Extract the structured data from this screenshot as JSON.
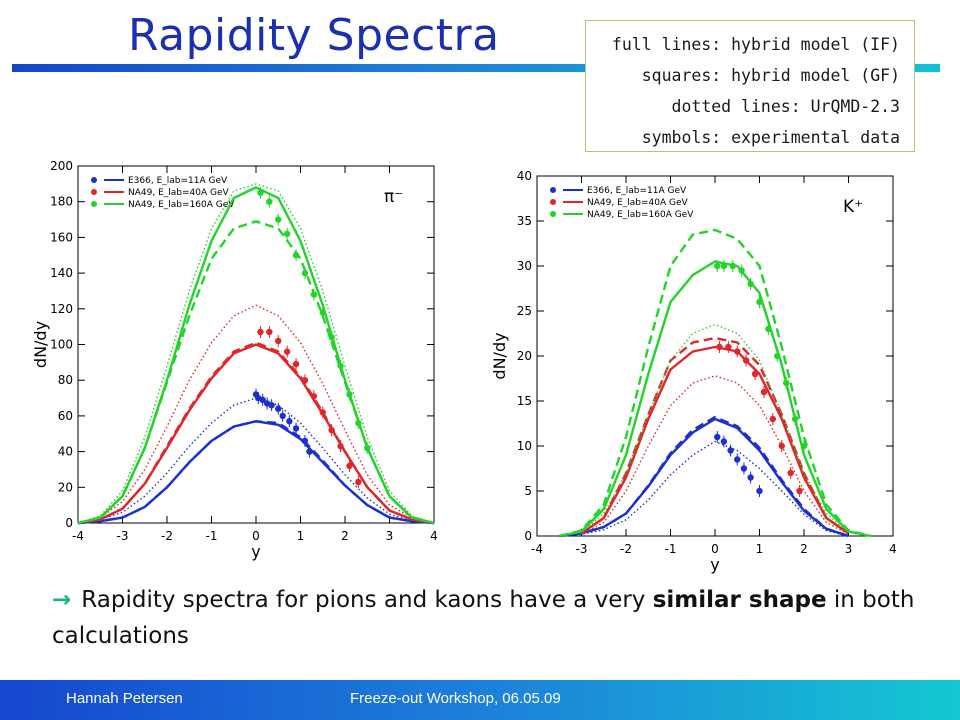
{
  "slide": {
    "title": "Rapidity Spectra",
    "legend_lines": [
      "full lines: hybrid model (IF)",
      "squares: hybrid model (GF)",
      "dotted lines: UrQMD-2.3",
      "symbols: experimental data"
    ],
    "caption_arrow": "→",
    "caption_part1": "Rapidity spectra for pions and kaons have a very ",
    "caption_bold1": "similar shape",
    "caption_part2": " in both calculations",
    "footer_author": "Hannah Petersen",
    "footer_event": "Freeze-out Workshop, 06.05.09"
  },
  "colors": {
    "E366": "#1c2fd1",
    "NA49_40": "#e0262a",
    "NA49_160": "#22d32a",
    "title": "#1b2fb0"
  },
  "chart_data": [
    {
      "type": "line",
      "particle_label": "π⁻",
      "xlabel": "y",
      "ylabel": "dN/dy",
      "xlim": [
        -4,
        4
      ],
      "ylim": [
        0,
        200
      ],
      "xticks": [
        "-4",
        "-3",
        "-2",
        "-1",
        "0",
        "1",
        "2",
        "3",
        "4"
      ],
      "yticks": [
        "0",
        "20",
        "40",
        "60",
        "80",
        "100",
        "120",
        "140",
        "160",
        "180",
        "200"
      ],
      "legend": [
        {
          "label": "E366, E_lab=11A GeV",
          "color_key": "E366"
        },
        {
          "label": "NA49, E_lab=40A GeV",
          "color_key": "NA49_40"
        },
        {
          "label": "NA49, E_lab=160A GeV",
          "color_key": "NA49_160"
        }
      ],
      "series": [
        {
          "color_key": "E366",
          "style": "solid",
          "x": [
            -4,
            -3.5,
            -3,
            -2.5,
            -2,
            -1.5,
            -1,
            -0.5,
            0,
            0.5,
            1,
            1.5,
            2,
            2.5,
            3,
            3.5,
            4
          ],
          "y": [
            0,
            1,
            3,
            9,
            20,
            34,
            46,
            54,
            57,
            55,
            47,
            34,
            21,
            10,
            3,
            1,
            0
          ]
        },
        {
          "color_key": "E366",
          "style": "dashed",
          "x": [
            -4,
            -3.5,
            -3,
            -2.5,
            -2,
            -1.5,
            -1,
            -0.5,
            0,
            0.5,
            1,
            1.5,
            2,
            2.5,
            3,
            3.5,
            4
          ],
          "y": [
            0,
            1,
            3,
            9,
            20,
            34,
            46,
            54,
            57,
            56,
            48,
            35,
            21,
            10,
            3,
            1,
            0
          ]
        },
        {
          "color_key": "E366",
          "style": "dotted",
          "x": [
            -4,
            -3.5,
            -3,
            -2.5,
            -2,
            -1.5,
            -1,
            -0.5,
            0,
            0.5,
            1,
            1.5,
            2,
            2.5,
            3,
            3.5,
            4
          ],
          "y": [
            0,
            2,
            6,
            15,
            28,
            43,
            56,
            66,
            70,
            66,
            56,
            42,
            27,
            14,
            5,
            1,
            0
          ]
        },
        {
          "color_key": "E366",
          "style": "points",
          "x": [
            0,
            0.05,
            0.15,
            0.25,
            0.35,
            0.5,
            0.6,
            0.75,
            0.9,
            1.1,
            1.2
          ],
          "y": [
            72,
            70,
            69,
            67,
            66,
            64,
            60,
            57,
            53,
            46,
            40
          ]
        },
        {
          "color_key": "NA49_40",
          "style": "solid",
          "x": [
            -4,
            -3.5,
            -3,
            -2.5,
            -2,
            -1.5,
            -1,
            -0.5,
            0,
            0.5,
            1,
            1.5,
            2,
            2.5,
            3,
            3.5,
            4
          ],
          "y": [
            0,
            2,
            8,
            22,
            42,
            63,
            81,
            95,
            100,
            95,
            81,
            61,
            40,
            20,
            7,
            2,
            0
          ]
        },
        {
          "color_key": "NA49_40",
          "style": "dashed",
          "x": [
            -4,
            -3.5,
            -3,
            -2.5,
            -2,
            -1.5,
            -1,
            -0.5,
            0,
            0.5,
            1,
            1.5,
            2,
            2.5,
            3,
            3.5,
            4
          ],
          "y": [
            0,
            2,
            8,
            22,
            43,
            64,
            82,
            96,
            101,
            96,
            82,
            62,
            40,
            20,
            7,
            2,
            0
          ]
        },
        {
          "color_key": "NA49_40",
          "style": "dotted",
          "x": [
            -4,
            -3.5,
            -3,
            -2.5,
            -2,
            -1.5,
            -1,
            -0.5,
            0,
            0.5,
            1,
            1.5,
            2,
            2.5,
            3,
            3.5,
            4
          ],
          "y": [
            0,
            3,
            12,
            30,
            54,
            80,
            101,
            116,
            122,
            116,
            101,
            78,
            52,
            27,
            10,
            3,
            0
          ]
        },
        {
          "color_key": "NA49_40",
          "style": "points",
          "x": [
            0.1,
            0.3,
            0.5,
            0.7,
            0.9,
            1.1,
            1.3,
            1.5,
            1.7,
            1.9,
            2.1,
            2.3
          ],
          "y": [
            107,
            107,
            102,
            96,
            89,
            80,
            71,
            62,
            52,
            43,
            32,
            23
          ]
        },
        {
          "color_key": "NA49_160",
          "style": "solid",
          "x": [
            -4,
            -3.5,
            -3,
            -2.5,
            -2,
            -1.5,
            -1,
            -0.5,
            0,
            0.5,
            1,
            1.5,
            2,
            2.5,
            3,
            3.5,
            4
          ],
          "y": [
            0,
            3,
            15,
            42,
            80,
            122,
            158,
            182,
            188,
            182,
            158,
            122,
            80,
            42,
            15,
            3,
            0
          ]
        },
        {
          "color_key": "NA49_160",
          "style": "dashed",
          "x": [
            -4,
            -3.5,
            -3,
            -2.5,
            -2,
            -1.5,
            -1,
            -0.5,
            0,
            0.5,
            1,
            1.5,
            2,
            2.5,
            3,
            3.5,
            4
          ],
          "y": [
            0,
            3,
            15,
            42,
            79,
            116,
            148,
            165,
            169,
            165,
            148,
            116,
            79,
            42,
            15,
            3,
            0
          ]
        },
        {
          "color_key": "NA49_160",
          "style": "dotted",
          "x": [
            -4,
            -3.5,
            -3,
            -2.5,
            -2,
            -1.5,
            -1,
            -0.5,
            0,
            0.5,
            1,
            1.5,
            2,
            2.5,
            3,
            3.5,
            4
          ],
          "y": [
            0,
            4,
            18,
            48,
            88,
            130,
            165,
            186,
            190,
            186,
            165,
            130,
            88,
            48,
            18,
            4,
            0
          ]
        },
        {
          "color_key": "NA49_160",
          "style": "points",
          "x": [
            0.1,
            0.3,
            0.5,
            0.7,
            0.9,
            1.1,
            1.3,
            1.5,
            1.7,
            1.9,
            2.1,
            2.3,
            2.5
          ],
          "y": [
            185,
            180,
            170,
            162,
            150,
            140,
            128,
            118,
            104,
            88,
            72,
            56,
            42
          ]
        }
      ]
    },
    {
      "type": "line",
      "particle_label": "K⁺",
      "xlabel": "y",
      "ylabel": "dN/dy",
      "xlim": [
        -4,
        4
      ],
      "ylim": [
        0,
        40
      ],
      "xticks": [
        "-4",
        "-3",
        "-2",
        "-1",
        "0",
        "1",
        "2",
        "3",
        "4"
      ],
      "yticks": [
        "0",
        "5",
        "10",
        "15",
        "20",
        "25",
        "30",
        "35",
        "40"
      ],
      "legend": [
        {
          "label": "E366, E_lab=11A GeV",
          "color_key": "E366"
        },
        {
          "label": "NA49, E_lab=40A GeV",
          "color_key": "NA49_40"
        },
        {
          "label": "NA49, E_lab=160A GeV",
          "color_key": "NA49_160"
        }
      ],
      "series": [
        {
          "color_key": "E366",
          "style": "solid",
          "x": [
            -3.5,
            -3,
            -2.5,
            -2,
            -1.5,
            -1,
            -0.5,
            0,
            0.5,
            1,
            1.5,
            2,
            2.5,
            3
          ],
          "y": [
            0,
            0.3,
            1,
            2.5,
            5.5,
            9,
            11.5,
            13,
            12,
            9.5,
            6,
            2.8,
            0.8,
            0
          ]
        },
        {
          "color_key": "E366",
          "style": "dashed",
          "x": [
            -3.5,
            -3,
            -2.5,
            -2,
            -1.5,
            -1,
            -0.5,
            0,
            0.5,
            1,
            1.5,
            2,
            2.5,
            3
          ],
          "y": [
            0,
            0.3,
            1,
            2.5,
            5.6,
            9.2,
            11.8,
            13.2,
            12.2,
            9.8,
            6.2,
            3,
            0.8,
            0
          ]
        },
        {
          "color_key": "E366",
          "style": "dotted",
          "x": [
            -3.5,
            -3,
            -2.5,
            -2,
            -1.5,
            -1,
            -0.5,
            0,
            0.5,
            1,
            1.5,
            2,
            2.5,
            3
          ],
          "y": [
            0,
            0.2,
            0.7,
            1.8,
            4,
            6.8,
            9,
            10.5,
            9.5,
            7.5,
            5,
            2.4,
            0.6,
            0
          ]
        },
        {
          "color_key": "E366",
          "style": "points",
          "x": [
            0.05,
            0.2,
            0.35,
            0.5,
            0.65,
            0.8,
            1
          ],
          "y": [
            11,
            10.5,
            9.5,
            8.5,
            7.5,
            6.5,
            5
          ]
        },
        {
          "color_key": "NA49_40",
          "style": "solid",
          "x": [
            -3,
            -2.5,
            -2,
            -1.5,
            -1,
            -0.5,
            0,
            0.5,
            1,
            1.5,
            2,
            2.5,
            3
          ],
          "y": [
            0.3,
            2,
            6.5,
            13,
            18.5,
            20.5,
            21,
            20.5,
            18,
            13,
            6.5,
            2,
            0.3
          ]
        },
        {
          "color_key": "NA49_40",
          "style": "dashed",
          "x": [
            -3,
            -2.5,
            -2,
            -1.5,
            -1,
            -0.5,
            0,
            0.5,
            1,
            1.5,
            2,
            2.5,
            3
          ],
          "y": [
            0.3,
            2,
            7,
            13.5,
            19.5,
            21.5,
            22,
            21.5,
            19,
            13.5,
            7,
            2,
            0.3
          ]
        },
        {
          "color_key": "NA49_40",
          "style": "dotted",
          "x": [
            -3,
            -2.5,
            -2,
            -1.5,
            -1,
            -0.5,
            0,
            0.5,
            1,
            1.5,
            2,
            2.5,
            3
          ],
          "y": [
            0.2,
            1.5,
            5,
            10,
            14.5,
            17,
            17.8,
            17,
            14.5,
            10,
            5,
            1.5,
            0.2
          ]
        },
        {
          "color_key": "NA49_40",
          "style": "points",
          "x": [
            0.1,
            0.3,
            0.5,
            0.7,
            0.9,
            1.1,
            1.3,
            1.5,
            1.7,
            1.9
          ],
          "y": [
            21,
            21,
            20.5,
            19.5,
            18,
            16,
            13,
            10,
            7,
            5
          ]
        },
        {
          "color_key": "NA49_160",
          "style": "solid",
          "x": [
            -3.5,
            -3,
            -2.5,
            -2,
            -1.5,
            -1,
            -0.5,
            0,
            0.5,
            1,
            1.5,
            2,
            2.5,
            3,
            3.5
          ],
          "y": [
            0,
            0.5,
            3,
            9,
            18,
            26,
            29,
            30.5,
            30,
            27,
            19,
            9,
            3,
            0.5,
            0
          ]
        },
        {
          "color_key": "NA49_160",
          "style": "dashed",
          "x": [
            -3.5,
            -3,
            -2.5,
            -2,
            -1.5,
            -1,
            -0.5,
            0,
            0.5,
            1,
            1.5,
            2,
            2.5,
            3,
            3.5
          ],
          "y": [
            0,
            0.6,
            3.5,
            11,
            21,
            30,
            33.5,
            34,
            33,
            30,
            21,
            11,
            3.5,
            0.6,
            0
          ]
        },
        {
          "color_key": "NA49_160",
          "style": "dotted",
          "x": [
            -3.5,
            -3,
            -2.5,
            -2,
            -1.5,
            -1,
            -0.5,
            0,
            0.5,
            1,
            1.5,
            2,
            2.5,
            3,
            3.5
          ],
          "y": [
            0,
            0.4,
            2.5,
            7,
            13.5,
            19.5,
            22.5,
            23.5,
            22.5,
            19.5,
            13.5,
            7,
            2.5,
            0.4,
            0
          ]
        },
        {
          "color_key": "NA49_160",
          "style": "points",
          "x": [
            0.05,
            0.2,
            0.4,
            0.6,
            0.8,
            1,
            1.2,
            1.4,
            1.6,
            1.8,
            2
          ],
          "y": [
            30,
            30,
            30,
            29.5,
            28,
            26,
            23,
            20,
            17,
            13,
            10
          ]
        }
      ]
    }
  ]
}
